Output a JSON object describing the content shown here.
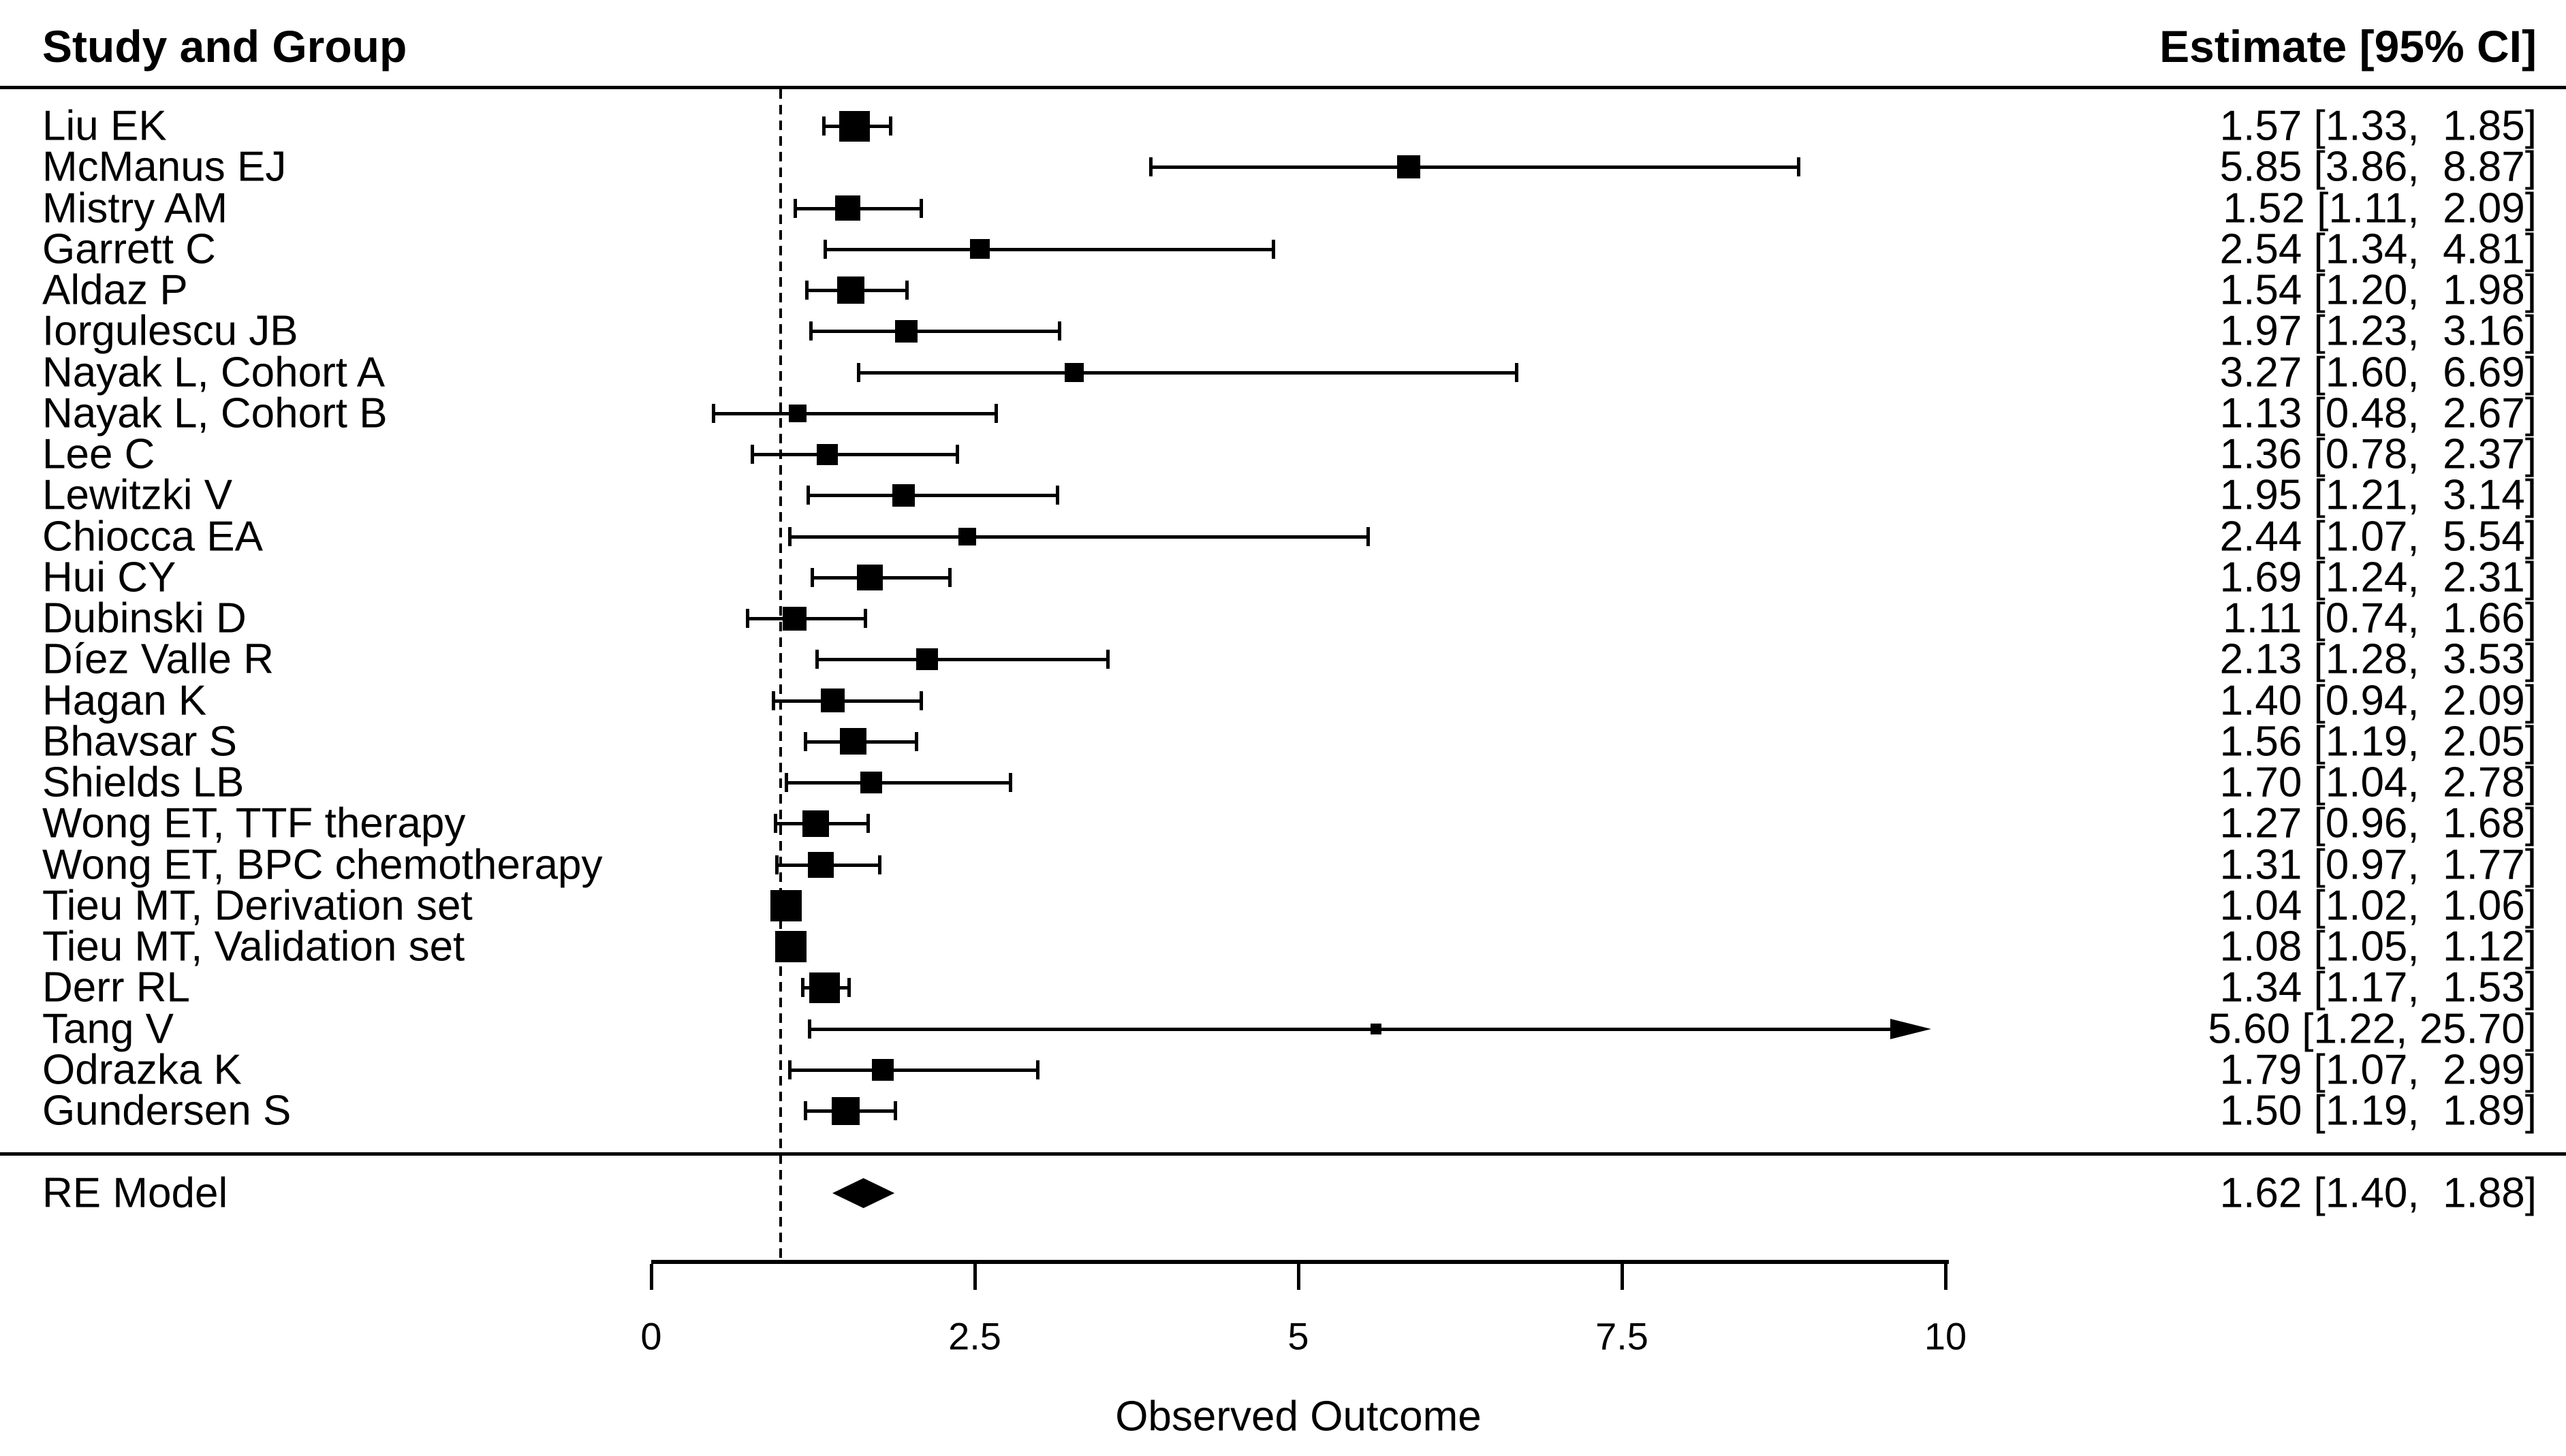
{
  "header": {
    "left_label": "Study and Group",
    "right_label": "Estimate [95% CI]"
  },
  "re_model": {
    "label": "RE Model",
    "estimate": 1.62,
    "ci_lower": 1.4,
    "ci_upper": 1.88,
    "display": "1.62 [1.40,  1.88]"
  },
  "colors": {
    "foreground": "#000000",
    "background": "#ffffff"
  },
  "chart_data": {
    "type": "forest",
    "xlabel": "Observed Outcome",
    "xlim": [
      0,
      10
    ],
    "x_ticks": [
      0,
      2.5,
      5,
      7.5,
      10
    ],
    "x_tick_labels": [
      "0",
      "2.5",
      "5",
      "7.5",
      "10"
    ],
    "reference_line": 1,
    "legend_position": "none",
    "grid": false,
    "columns": [
      "Study and Group",
      "Estimate [95% CI]"
    ],
    "studies": [
      {
        "name": "Liu EK",
        "estimate": 1.57,
        "ci_lower": 1.33,
        "ci_upper": 1.85,
        "display": "1.57 [1.33,  1.85]",
        "size": 45,
        "arrow": false
      },
      {
        "name": "McManus EJ",
        "estimate": 5.85,
        "ci_lower": 3.86,
        "ci_upper": 8.87,
        "display": "5.85 [3.86,  8.87]",
        "size": 34,
        "arrow": false
      },
      {
        "name": "Mistry AM",
        "estimate": 1.52,
        "ci_lower": 1.11,
        "ci_upper": 2.09,
        "display": "1.52 [1.11,  2.09]",
        "size": 37,
        "arrow": false
      },
      {
        "name": "Garrett C",
        "estimate": 2.54,
        "ci_lower": 1.34,
        "ci_upper": 4.81,
        "display": "2.54 [1.34,  4.81]",
        "size": 29,
        "arrow": false
      },
      {
        "name": "Aldaz P",
        "estimate": 1.54,
        "ci_lower": 1.2,
        "ci_upper": 1.98,
        "display": "1.54 [1.20,  1.98]",
        "size": 40,
        "arrow": false
      },
      {
        "name": "Iorgulescu JB",
        "estimate": 1.97,
        "ci_lower": 1.23,
        "ci_upper": 3.16,
        "display": "1.97 [1.23,  3.16]",
        "size": 33,
        "arrow": false
      },
      {
        "name": "Nayak L, Cohort A",
        "estimate": 3.27,
        "ci_lower": 1.6,
        "ci_upper": 6.69,
        "display": "3.27 [1.60,  6.69]",
        "size": 28,
        "arrow": false
      },
      {
        "name": "Nayak L, Cohort B",
        "estimate": 1.13,
        "ci_lower": 0.48,
        "ci_upper": 2.67,
        "display": "1.13 [0.48,  2.67]",
        "size": 26,
        "arrow": false
      },
      {
        "name": "Lee C",
        "estimate": 1.36,
        "ci_lower": 0.78,
        "ci_upper": 2.37,
        "display": "1.36 [0.78,  2.37]",
        "size": 31,
        "arrow": false
      },
      {
        "name": "Lewitzki V",
        "estimate": 1.95,
        "ci_lower": 1.21,
        "ci_upper": 3.14,
        "display": "1.95 [1.21,  3.14]",
        "size": 33,
        "arrow": false
      },
      {
        "name": "Chiocca EA",
        "estimate": 2.44,
        "ci_lower": 1.07,
        "ci_upper": 5.54,
        "display": "2.44 [1.07,  5.54]",
        "size": 26,
        "arrow": false
      },
      {
        "name": "Hui CY",
        "estimate": 1.69,
        "ci_lower": 1.24,
        "ci_upper": 2.31,
        "display": "1.69 [1.24,  2.31]",
        "size": 38,
        "arrow": false
      },
      {
        "name": "Dubinski D",
        "estimate": 1.11,
        "ci_lower": 0.74,
        "ci_upper": 1.66,
        "display": "1.11 [0.74,  1.66]",
        "size": 35,
        "arrow": false
      },
      {
        "name": "Díez Valle R",
        "estimate": 2.13,
        "ci_lower": 1.28,
        "ci_upper": 3.53,
        "display": "2.13 [1.28,  3.53]",
        "size": 32,
        "arrow": false
      },
      {
        "name": "Hagan K",
        "estimate": 1.4,
        "ci_lower": 0.94,
        "ci_upper": 2.09,
        "display": "1.40 [0.94,  2.09]",
        "size": 35,
        "arrow": false
      },
      {
        "name": "Bhavsar S",
        "estimate": 1.56,
        "ci_lower": 1.19,
        "ci_upper": 2.05,
        "display": "1.56 [1.19,  2.05]",
        "size": 39,
        "arrow": false
      },
      {
        "name": "Shields LB",
        "estimate": 1.7,
        "ci_lower": 1.04,
        "ci_upper": 2.78,
        "display": "1.70 [1.04,  2.78]",
        "size": 32,
        "arrow": false
      },
      {
        "name": "Wong ET, TTF therapy",
        "estimate": 1.27,
        "ci_lower": 0.96,
        "ci_upper": 1.68,
        "display": "1.27 [0.96,  1.68]",
        "size": 39,
        "arrow": false
      },
      {
        "name": "Wong ET, BPC chemotherapy",
        "estimate": 1.31,
        "ci_lower": 0.97,
        "ci_upper": 1.77,
        "display": "1.31 [0.97,  1.77]",
        "size": 38,
        "arrow": false
      },
      {
        "name": "Tieu MT, Derivation set",
        "estimate": 1.04,
        "ci_lower": 1.02,
        "ci_upper": 1.06,
        "display": "1.04 [1.02,  1.06]",
        "size": 46,
        "arrow": false
      },
      {
        "name": "Tieu MT, Validation set",
        "estimate": 1.08,
        "ci_lower": 1.05,
        "ci_upper": 1.12,
        "display": "1.08 [1.05,  1.12]",
        "size": 46,
        "arrow": false
      },
      {
        "name": "Derr RL",
        "estimate": 1.34,
        "ci_lower": 1.17,
        "ci_upper": 1.53,
        "display": "1.34 [1.17,  1.53]",
        "size": 45,
        "arrow": false
      },
      {
        "name": "Tang V",
        "estimate": 5.6,
        "ci_lower": 1.22,
        "ci_upper": 25.7,
        "display": "5.60 [1.22, 25.70]",
        "size": 16,
        "arrow": true
      },
      {
        "name": "Odrazka K",
        "estimate": 1.79,
        "ci_lower": 1.07,
        "ci_upper": 2.99,
        "display": "1.79 [1.07,  2.99]",
        "size": 32,
        "arrow": false
      },
      {
        "name": "Gundersen S",
        "estimate": 1.5,
        "ci_lower": 1.19,
        "ci_upper": 1.89,
        "display": "1.50 [1.19,  1.89]",
        "size": 41,
        "arrow": false
      }
    ],
    "summary": {
      "name": "RE Model",
      "estimate": 1.62,
      "ci_lower": 1.4,
      "ci_upper": 1.88,
      "display": "1.62 [1.40,  1.88]"
    }
  }
}
